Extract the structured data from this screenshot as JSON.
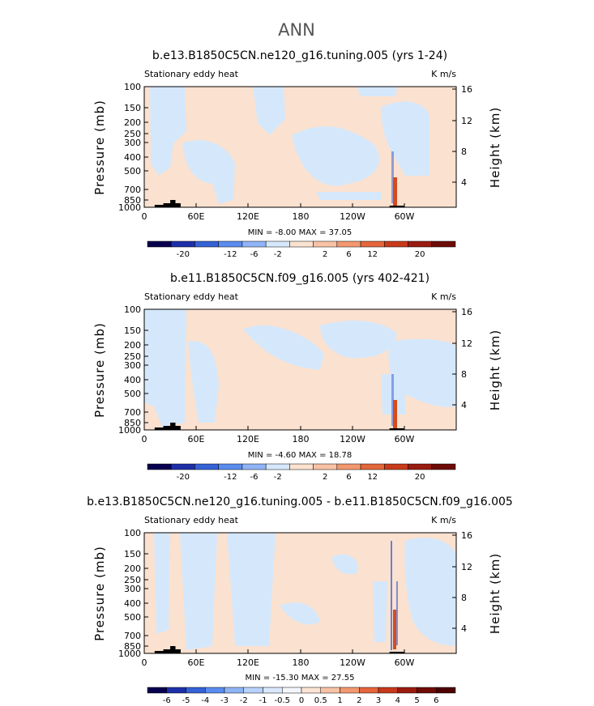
{
  "main_title": "ANN",
  "colors": {
    "warm": "#fbe1cf",
    "cool": "#d5e8fb",
    "white": "#ffffff",
    "blue_strong": "#2b58d6",
    "red_strong": "#d84a1b",
    "topo": "#000000"
  },
  "chart_data": [
    {
      "type": "heatmap",
      "title": "b.e13.B1850C5CN.ne120_g16.tuning.005 (yrs 1-24)",
      "left_string": "Stationary eddy heat",
      "right_string": "K m/s",
      "ylabel": "Pressure (mb)",
      "ylabel_right": "Height (km)",
      "x_ticks": [
        "0",
        "60E",
        "120E",
        "180",
        "120W",
        "60W"
      ],
      "y_ticks": [
        "100",
        "150",
        "200",
        "250",
        "300",
        "400",
        "500",
        "700",
        "850",
        "1000"
      ],
      "height_ticks": [
        "4",
        "8",
        "12",
        "16"
      ],
      "min_max": "MIN =   -8.00   MAX =   37.05",
      "colorbar_labels": [
        "-20",
        "-12",
        "-6",
        "-2",
        "2",
        "6",
        "12",
        "20"
      ]
    },
    {
      "type": "heatmap",
      "title": "b.e11.B1850C5CN.f09_g16.005 (yrs 402-421)",
      "left_string": "Stationary eddy heat",
      "right_string": "K m/s",
      "ylabel": "Pressure (mb)",
      "ylabel_right": "Height (km)",
      "x_ticks": [
        "0",
        "60E",
        "120E",
        "180",
        "120W",
        "60W"
      ],
      "y_ticks": [
        "100",
        "150",
        "200",
        "250",
        "300",
        "400",
        "500",
        "700",
        "850",
        "1000"
      ],
      "height_ticks": [
        "4",
        "8",
        "12",
        "16"
      ],
      "min_max": "MIN =   -4.60   MAX =   18.78",
      "colorbar_labels": [
        "-20",
        "-12",
        "-6",
        "-2",
        "2",
        "6",
        "12",
        "20"
      ]
    },
    {
      "type": "heatmap",
      "title": "b.e13.B1850C5CN.ne120_g16.tuning.005 - b.e11.B1850C5CN.f09_g16.005",
      "left_string": "Stationary eddy heat",
      "right_string": "K m/s",
      "ylabel": "Pressure (mb)",
      "ylabel_right": "Height (km)",
      "x_ticks": [
        "0",
        "60E",
        "120E",
        "180",
        "120W",
        "60W"
      ],
      "y_ticks": [
        "100",
        "150",
        "200",
        "250",
        "300",
        "400",
        "500",
        "700",
        "850",
        "1000"
      ],
      "height_ticks": [
        "4",
        "8",
        "12",
        "16"
      ],
      "min_max": "MIN =  -15.30   MAX =   27.55",
      "colorbar_labels": [
        "-6",
        "-5",
        "-4",
        "-3",
        "-2",
        "-1",
        "-0.5",
        "0",
        "0.5",
        "1",
        "2",
        "3",
        "4",
        "5",
        "6"
      ]
    }
  ]
}
